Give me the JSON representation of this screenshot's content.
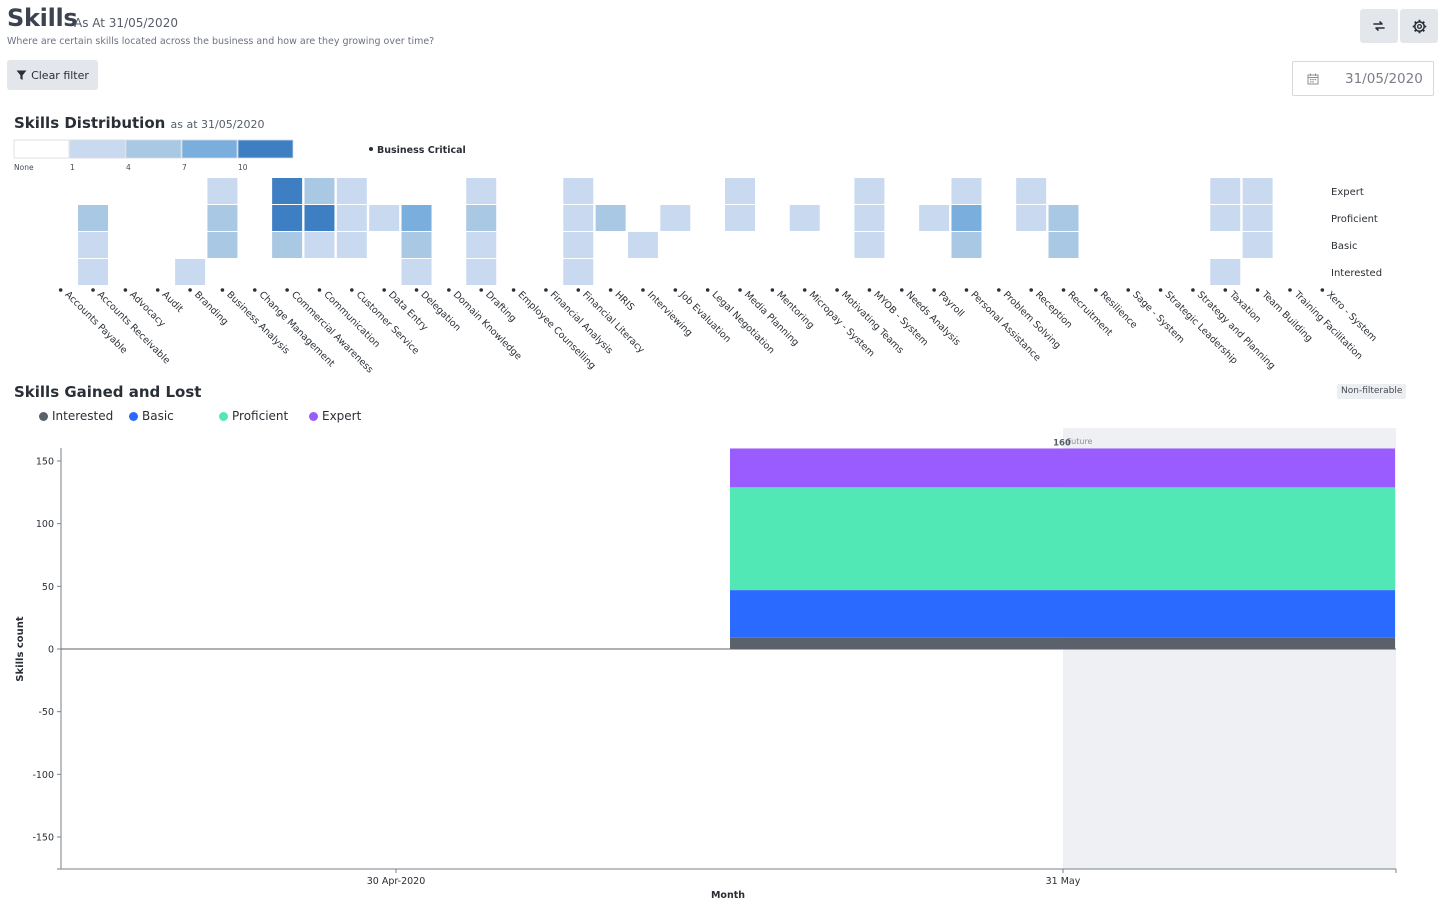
{
  "header": {
    "title": "Skills",
    "as_at": "As At 31/05/2020",
    "subtitle": "Where are certain skills located across the business and how are they growing over time?",
    "refresh_icon": "refresh-icon",
    "settings_icon": "gear-icon"
  },
  "filters": {
    "clear_filter_label": "Clear filter",
    "date_value": "31/05/2020"
  },
  "distribution": {
    "title": "Skills Distribution",
    "subtitle": "as at 31/05/2020",
    "legend_labels": [
      "None",
      "1",
      "4",
      "7",
      "10"
    ],
    "legend_colors": [
      "#ffffff",
      "#c9daf0",
      "#a9c8e4",
      "#7aaedc",
      "#3e7fc4"
    ],
    "business_critical_label": "Business Critical",
    "levels": [
      "Expert",
      "Proficient",
      "Basic",
      "Interested"
    ],
    "skills": [
      "Accounts Payable",
      "Accounts Receivable",
      "Advocacy",
      "Audit",
      "Branding",
      "Business Analysis",
      "Change Management",
      "Commercial Awareness",
      "Communication",
      "Customer Service",
      "Data Entry",
      "Delegation",
      "Domain Knowledge",
      "Drafting",
      "Employee Counselling",
      "Financial Analysis",
      "Financial Literacy",
      "HRIS",
      "Interviewing",
      "Job Evaluation",
      "Legal Negotiation",
      "Media Planning",
      "Mentoring",
      "Micropay - System",
      "Motivating Teams",
      "MYOB - System",
      "Needs Analysis",
      "Payroll",
      "Personal Assistance",
      "Problem Solving",
      "Reception",
      "Recruitment",
      "Resilience",
      "Sage - System",
      "Strategic Leadership",
      "Strategy and Planning",
      "Taxation",
      "Team Building",
      "Training Facilitation",
      "Xero - System"
    ],
    "cells": [
      [
        1,
        "Proficient",
        2
      ],
      [
        1,
        "Basic",
        1
      ],
      [
        1,
        "Interested",
        1
      ],
      [
        4,
        "Interested",
        1
      ],
      [
        5,
        "Expert",
        1
      ],
      [
        5,
        "Proficient",
        2
      ],
      [
        5,
        "Basic",
        2
      ],
      [
        7,
        "Expert",
        4
      ],
      [
        7,
        "Proficient",
        5
      ],
      [
        7,
        "Basic",
        2
      ],
      [
        8,
        "Expert",
        2
      ],
      [
        8,
        "Proficient",
        5
      ],
      [
        8,
        "Basic",
        1
      ],
      [
        9,
        "Expert",
        1
      ],
      [
        9,
        "Proficient",
        1
      ],
      [
        9,
        "Basic",
        1
      ],
      [
        10,
        "Proficient",
        1
      ],
      [
        11,
        "Proficient",
        3
      ],
      [
        11,
        "Basic",
        2
      ],
      [
        11,
        "Interested",
        1
      ],
      [
        13,
        "Expert",
        1
      ],
      [
        13,
        "Proficient",
        2
      ],
      [
        13,
        "Basic",
        1
      ],
      [
        13,
        "Interested",
        1
      ],
      [
        16,
        "Expert",
        1
      ],
      [
        16,
        "Proficient",
        1
      ],
      [
        16,
        "Basic",
        1
      ],
      [
        16,
        "Interested",
        1
      ],
      [
        17,
        "Proficient",
        2
      ],
      [
        18,
        "Basic",
        1
      ],
      [
        19,
        "Proficient",
        1
      ],
      [
        21,
        "Expert",
        1
      ],
      [
        21,
        "Proficient",
        1
      ],
      [
        23,
        "Proficient",
        1
      ],
      [
        25,
        "Expert",
        1
      ],
      [
        25,
        "Proficient",
        1
      ],
      [
        25,
        "Basic",
        1
      ],
      [
        27,
        "Proficient",
        1
      ],
      [
        28,
        "Expert",
        1
      ],
      [
        28,
        "Proficient",
        3
      ],
      [
        28,
        "Basic",
        2
      ],
      [
        30,
        "Expert",
        1
      ],
      [
        30,
        "Proficient",
        1
      ],
      [
        31,
        "Proficient",
        2
      ],
      [
        31,
        "Basic",
        2
      ],
      [
        36,
        "Expert",
        1
      ],
      [
        36,
        "Proficient",
        1
      ],
      [
        36,
        "Interested",
        1
      ],
      [
        37,
        "Expert",
        1
      ],
      [
        37,
        "Proficient",
        1
      ],
      [
        37,
        "Basic",
        1
      ]
    ]
  },
  "gained_lost": {
    "title": "Skills Gained and Lost",
    "nonfilterable_label": "Non-filterable",
    "future_label": "Future"
  },
  "chart_data": {
    "type": "bar",
    "stacked": true,
    "categories": [
      "30 Apr-2020",
      "31 May"
    ],
    "series": [
      {
        "name": "Interested",
        "color": "#5b616b",
        "values": [
          0,
          9
        ]
      },
      {
        "name": "Basic",
        "color": "#2b6aff",
        "values": [
          0,
          38
        ]
      },
      {
        "name": "Proficient",
        "color": "#51e8b5",
        "values": [
          0,
          82
        ]
      },
      {
        "name": "Expert",
        "color": "#9b5cff",
        "values": [
          0,
          31
        ]
      }
    ],
    "total_labels": [
      "",
      "160"
    ],
    "xlabel": "Month",
    "ylabel": "Skills count",
    "yticks": [
      150,
      100,
      50,
      0,
      -50,
      -100,
      -150
    ],
    "ylim": [
      -175,
      170
    ],
    "legend": "top-left"
  }
}
